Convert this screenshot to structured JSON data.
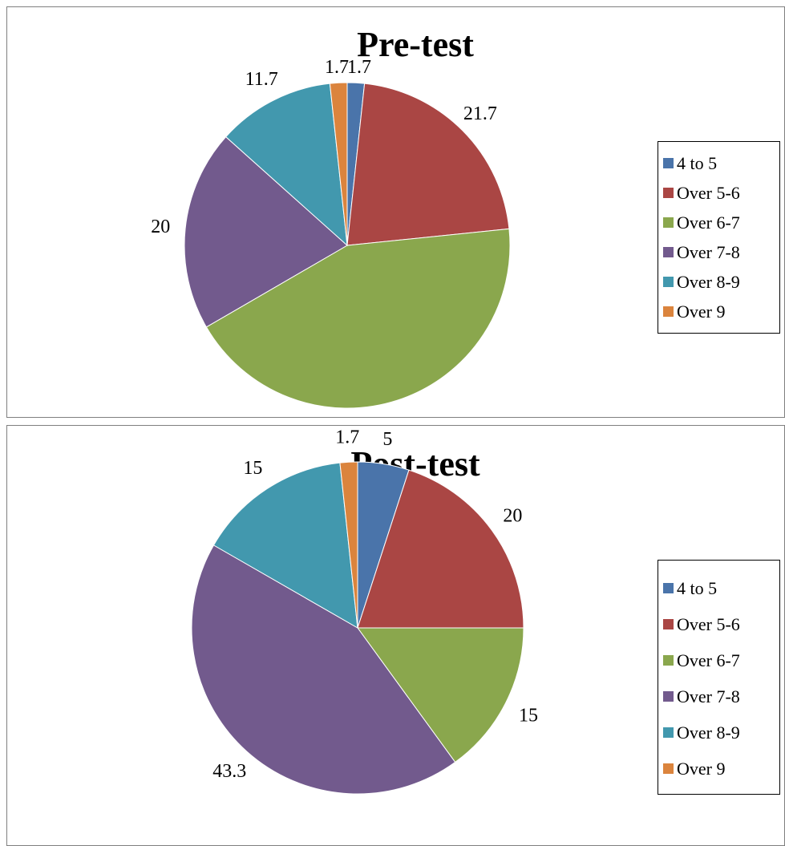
{
  "charts": [
    {
      "title": "Pre-test",
      "legend": [
        "4 to 5",
        "Over 5-6",
        "Over 6-7",
        "Over 7-8",
        "Over 8-9",
        "Over 9"
      ],
      "values": [
        1.7,
        21.7,
        43.3,
        20,
        11.7,
        1.7
      ],
      "labels": [
        "1.7",
        "21.7",
        "43.3",
        "20",
        "11.7",
        "1.7"
      ]
    },
    {
      "title": "Post-test",
      "legend": [
        "4 to 5",
        "Over 5-6",
        "Over 6-7",
        "Over 7-8",
        "Over 8-9",
        "Over 9"
      ],
      "values": [
        5,
        20,
        15,
        43.3,
        15,
        1.7
      ],
      "labels": [
        "5",
        "20",
        "15",
        "43.3",
        "15",
        "1.7"
      ]
    }
  ],
  "colors": [
    "#4a74aa",
    "#aa4644",
    "#8aa74d",
    "#725a8d",
    "#4298ae",
    "#db843d"
  ],
  "chart_data": [
    {
      "type": "pie",
      "title": "Pre-test",
      "categories": [
        "4 to 5",
        "Over 5-6",
        "Over 6-7",
        "Over 7-8",
        "Over 8-9",
        "Over 9"
      ],
      "values": [
        1.7,
        21.7,
        43.3,
        20,
        11.7,
        1.7
      ],
      "legend_position": "right"
    },
    {
      "type": "pie",
      "title": "Post-test",
      "categories": [
        "4 to 5",
        "Over 5-6",
        "Over 6-7",
        "Over 7-8",
        "Over 8-9",
        "Over 9"
      ],
      "values": [
        5,
        20,
        15,
        43.3,
        15,
        1.7
      ],
      "legend_position": "right"
    }
  ]
}
